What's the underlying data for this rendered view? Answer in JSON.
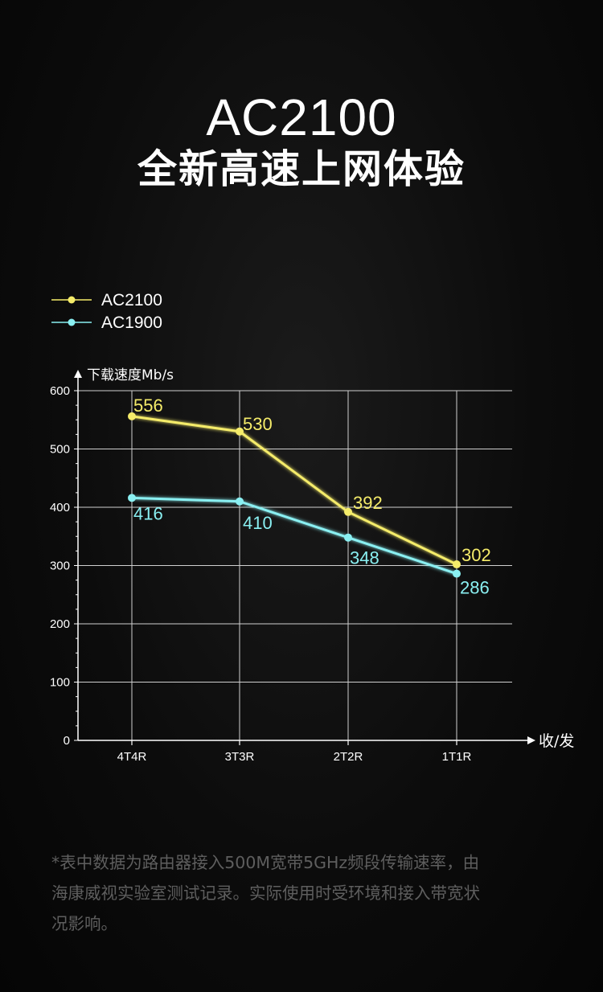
{
  "page": {
    "title": "AC2100",
    "subtitle": "全新高速上网体验",
    "footnote": "*表中数据为路由器接入500M宽带5GHz频段传输速率，由\n海康威视实验室测试记录。实际使用时受环境和接入带宽状\n况影响。"
  },
  "chart_data": {
    "type": "line",
    "categories": [
      "4T4R",
      "3T3R",
      "2T2R",
      "1T1R"
    ],
    "series": [
      {
        "name": "AC2100",
        "values": [
          556,
          530,
          392,
          302
        ],
        "color": "#f5ec6a"
      },
      {
        "name": "AC1900",
        "values": [
          416,
          410,
          348,
          286
        ],
        "color": "#8af0f2"
      }
    ],
    "ylabel": "下载速度Mb/s",
    "xlabel": "收/发",
    "ylim": [
      0,
      600
    ],
    "yticks": [
      0,
      100,
      200,
      300,
      400,
      500,
      600
    ],
    "grid": true,
    "legend_position": "top-left"
  }
}
